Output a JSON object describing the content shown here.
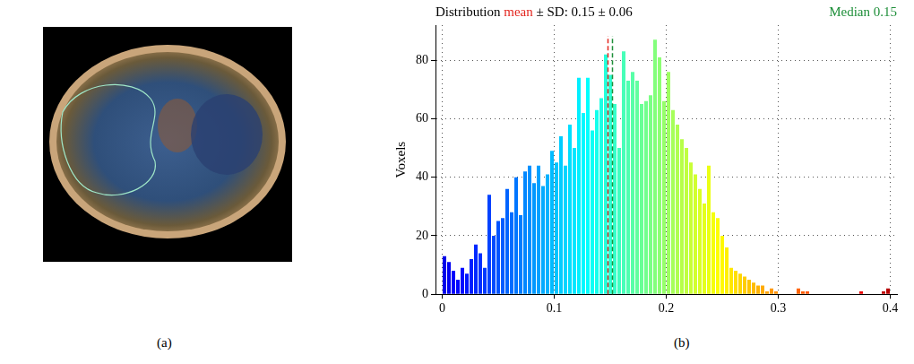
{
  "panel_labels": [
    "(a)",
    "(b)"
  ],
  "chart_data": {
    "type": "histogram",
    "title": [
      {
        "text": "Distribution"
      },
      {
        "text": "mean",
        "color": "#e3261f"
      },
      {
        "text": "± SD: 0.15 ± 0.06"
      }
    ],
    "title_right": {
      "text": "Median 0.15",
      "color": "#1f8f3a"
    },
    "y_label": "Voxels",
    "bins": [
      0,
      0.004,
      0.008,
      0.012,
      0.016,
      0.02,
      0.024,
      0.028,
      0.032,
      0.036,
      0.04,
      0.044,
      0.048,
      0.052,
      0.056,
      0.06,
      0.064,
      0.068,
      0.072,
      0.076,
      0.08,
      0.084,
      0.088,
      0.092,
      0.096,
      0.1,
      0.104,
      0.108,
      0.112,
      0.116,
      0.12,
      0.124,
      0.128,
      0.132,
      0.136,
      0.14,
      0.144,
      0.148,
      0.152,
      0.156,
      0.16,
      0.164,
      0.168,
      0.172,
      0.176,
      0.18,
      0.184,
      0.188,
      0.192,
      0.196,
      0.2,
      0.204,
      0.208,
      0.212,
      0.216,
      0.22,
      0.224,
      0.228,
      0.232,
      0.236,
      0.24,
      0.244,
      0.248,
      0.252,
      0.256,
      0.26,
      0.264,
      0.268,
      0.272,
      0.276,
      0.28,
      0.284,
      0.288,
      0.292,
      0.296,
      0.3,
      0.304,
      0.308,
      0.312,
      0.316,
      0.32,
      0.324,
      0.328,
      0.332,
      0.336,
      0.34,
      0.344,
      0.348,
      0.352,
      0.356,
      0.36,
      0.364,
      0.368,
      0.372,
      0.376,
      0.38,
      0.384,
      0.388,
      0.392,
      0.396,
      0.4
    ],
    "values": [
      13,
      11,
      8,
      5,
      9,
      7,
      12,
      17,
      14,
      9,
      34,
      20,
      25,
      26,
      36,
      28,
      40,
      27,
      42,
      44,
      38,
      44,
      37,
      41,
      49,
      45,
      54,
      44,
      58,
      50,
      74,
      62,
      74,
      56,
      63,
      67,
      82,
      75,
      65,
      50,
      83,
      73,
      76,
      73,
      65,
      66,
      68,
      87,
      81,
      66,
      76,
      63,
      58,
      53,
      50,
      45,
      41,
      36,
      31,
      44,
      28,
      26,
      20,
      16,
      9,
      8,
      7,
      6,
      5,
      4,
      3,
      3,
      1,
      2,
      1,
      0,
      0,
      0,
      0,
      2,
      1,
      1,
      0,
      0,
      0,
      0,
      0,
      0,
      0,
      0,
      0,
      0,
      0,
      1,
      0,
      0,
      0,
      0,
      1,
      2
    ],
    "lines": [
      {
        "value": 0.148,
        "color": "#e3261f",
        "line_style": "dashed"
      },
      {
        "value": 0.152,
        "color": "#1f8f3a",
        "line_style": "dashed"
      }
    ],
    "xlim": [
      -0.006,
      0.406
    ],
    "ylim": [
      0,
      92
    ],
    "xticks": [
      0,
      0.1,
      0.2,
      0.3,
      0.4
    ],
    "yticks": [
      0,
      20,
      40,
      60,
      80
    ],
    "grid": true
  }
}
